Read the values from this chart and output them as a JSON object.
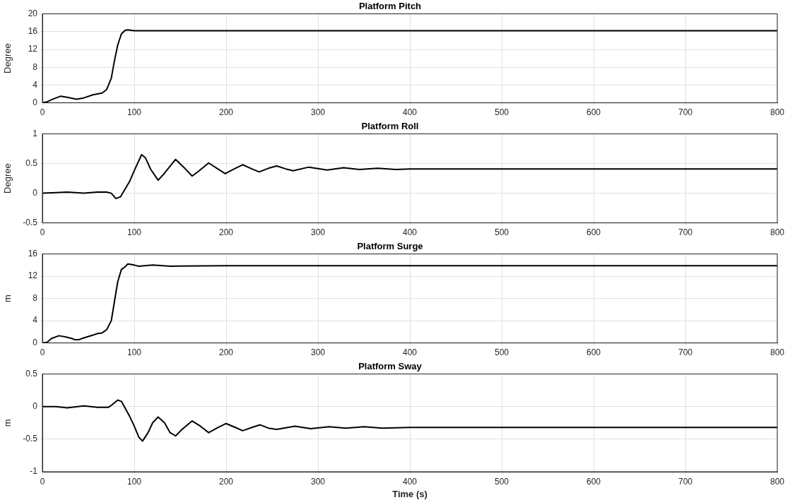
{
  "chart_data": [
    {
      "type": "line",
      "title": "Platform Pitch",
      "ylabel": "Degree",
      "xlim": [
        0,
        800
      ],
      "xticks": [
        0,
        100,
        200,
        300,
        400,
        500,
        600,
        700,
        800
      ],
      "ylim": [
        0,
        20
      ],
      "yticks": [
        0,
        4,
        8,
        12,
        16,
        20
      ],
      "grid": true,
      "series": [
        {
          "color": "#000000",
          "x": [
            0,
            5,
            10,
            20,
            28,
            37,
            45,
            55,
            65,
            70,
            75,
            78,
            82,
            86,
            90,
            93,
            100,
            150,
            200,
            300,
            400,
            500,
            600,
            700,
            800
          ],
          "values": [
            0,
            0.2,
            0.7,
            1.5,
            1.2,
            0.8,
            1.1,
            1.8,
            2.2,
            3,
            5.5,
            9,
            13,
            15.5,
            16.3,
            16.4,
            16.2,
            16.2,
            16.2,
            16.2,
            16.2,
            16.2,
            16.2,
            16.2,
            16.2
          ]
        }
      ]
    },
    {
      "type": "line",
      "title": "Platform Roll",
      "ylabel": "Degree",
      "xlim": [
        0,
        800
      ],
      "xticks": [
        0,
        100,
        200,
        300,
        400,
        500,
        600,
        700,
        800
      ],
      "ylim": [
        -0.5,
        1
      ],
      "yticks": [
        -0.5,
        0,
        0.5,
        1
      ],
      "grid": true,
      "series": [
        {
          "color": "#000000",
          "x": [
            0,
            15,
            27,
            45,
            60,
            70,
            75,
            80,
            85,
            95,
            100,
            108,
            112,
            118,
            126,
            132,
            145,
            155,
            163,
            170,
            181,
            190,
            199,
            210,
            218,
            228,
            236,
            246,
            255,
            265,
            273,
            290,
            310,
            328,
            345,
            365,
            385,
            400,
            500,
            600,
            700,
            800
          ],
          "values": [
            0,
            0.01,
            0.02,
            0,
            0.02,
            0.02,
            0,
            -0.09,
            -0.06,
            0.2,
            0.38,
            0.65,
            0.6,
            0.4,
            0.22,
            0.32,
            0.57,
            0.42,
            0.29,
            0.37,
            0.51,
            0.42,
            0.33,
            0.42,
            0.48,
            0.41,
            0.36,
            0.42,
            0.46,
            0.41,
            0.38,
            0.44,
            0.39,
            0.43,
            0.4,
            0.42,
            0.4,
            0.41,
            0.41,
            0.41,
            0.41,
            0.41
          ]
        }
      ]
    },
    {
      "type": "line",
      "title": "Platform Surge",
      "ylabel": "m",
      "xlim": [
        0,
        800
      ],
      "xticks": [
        0,
        100,
        200,
        300,
        400,
        500,
        600,
        700,
        800
      ],
      "ylim": [
        0,
        16
      ],
      "yticks": [
        0,
        4,
        8,
        12,
        16
      ],
      "grid": true,
      "series": [
        {
          "color": "#000000",
          "x": [
            0,
            5,
            10,
            18,
            25,
            32,
            35,
            40,
            45,
            55,
            60,
            65,
            70,
            75,
            78,
            82,
            86,
            90,
            93,
            100,
            105,
            120,
            140,
            200,
            300,
            400,
            500,
            600,
            700,
            800
          ],
          "values": [
            0,
            0.1,
            0.8,
            1.3,
            1.1,
            0.8,
            0.6,
            0.6,
            0.9,
            1.4,
            1.7,
            1.8,
            2.4,
            4,
            7,
            11,
            13.2,
            13.7,
            14.2,
            14,
            13.8,
            14,
            13.8,
            13.9,
            13.9,
            13.9,
            13.9,
            13.9,
            13.9,
            13.9
          ]
        }
      ]
    },
    {
      "type": "line",
      "title": "Platform Sway",
      "xlabel": "Time (s)",
      "ylabel": "m",
      "xlim": [
        0,
        800
      ],
      "xticks": [
        0,
        100,
        200,
        300,
        400,
        500,
        600,
        700,
        800
      ],
      "ylim": [
        -1,
        0.5
      ],
      "yticks": [
        -1,
        -0.5,
        0,
        0.5
      ],
      "grid": true,
      "series": [
        {
          "color": "#000000",
          "x": [
            0,
            15,
            27,
            45,
            60,
            72,
            76,
            82,
            86,
            95,
            100,
            105,
            109,
            115,
            120,
            126,
            133,
            139,
            145,
            152,
            163,
            172,
            181,
            190,
            200,
            210,
            218,
            228,
            237,
            246,
            255,
            275,
            292,
            312,
            330,
            350,
            370,
            400,
            500,
            600,
            700,
            800
          ],
          "values": [
            0,
            0,
            -0.02,
            0.01,
            -0.01,
            -0.01,
            0.03,
            0.1,
            0.08,
            -0.15,
            -0.3,
            -0.47,
            -0.53,
            -0.4,
            -0.25,
            -0.16,
            -0.25,
            -0.4,
            -0.45,
            -0.35,
            -0.22,
            -0.3,
            -0.4,
            -0.33,
            -0.26,
            -0.32,
            -0.37,
            -0.32,
            -0.28,
            -0.33,
            -0.35,
            -0.3,
            -0.34,
            -0.31,
            -0.33,
            -0.31,
            -0.33,
            -0.32,
            -0.32,
            -0.32,
            -0.32,
            -0.32
          ]
        }
      ]
    }
  ]
}
